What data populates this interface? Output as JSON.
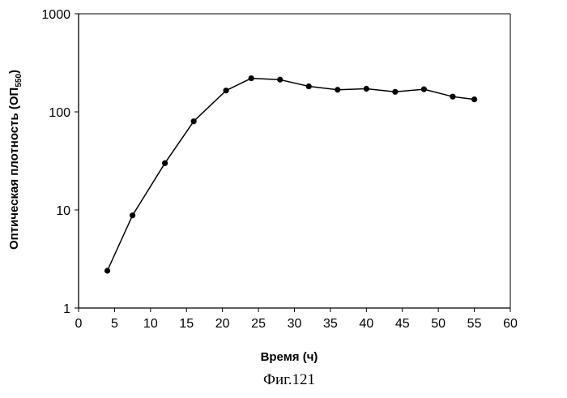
{
  "chart_data": {
    "type": "line",
    "xlabel": "Время (ч)",
    "ylabel": {
      "main": "Оптическая плотность (ОП",
      "subscript": "550",
      "close": ")"
    },
    "caption": "Фиг.121",
    "xlim": [
      0,
      60
    ],
    "ylim": [
      1,
      1000
    ],
    "yscale": "log",
    "grid": false,
    "legend": "none",
    "x_ticks": [
      "0",
      "5",
      "10",
      "15",
      "20",
      "25",
      "30",
      "35",
      "40",
      "45",
      "50",
      "55",
      "60"
    ],
    "y_ticks": [
      "1",
      "10",
      "100",
      "1000"
    ],
    "series": [
      {
        "x": [
          4,
          7.5,
          12,
          16,
          20.5,
          24,
          28,
          32,
          36,
          40,
          44,
          48,
          52,
          55
        ],
        "y": [
          2.4,
          8.8,
          30,
          80,
          165,
          220,
          213,
          182,
          168,
          172,
          160,
          170,
          143,
          134
        ]
      }
    ],
    "colors": {
      "line": "#000000",
      "marker": "#000000"
    }
  }
}
